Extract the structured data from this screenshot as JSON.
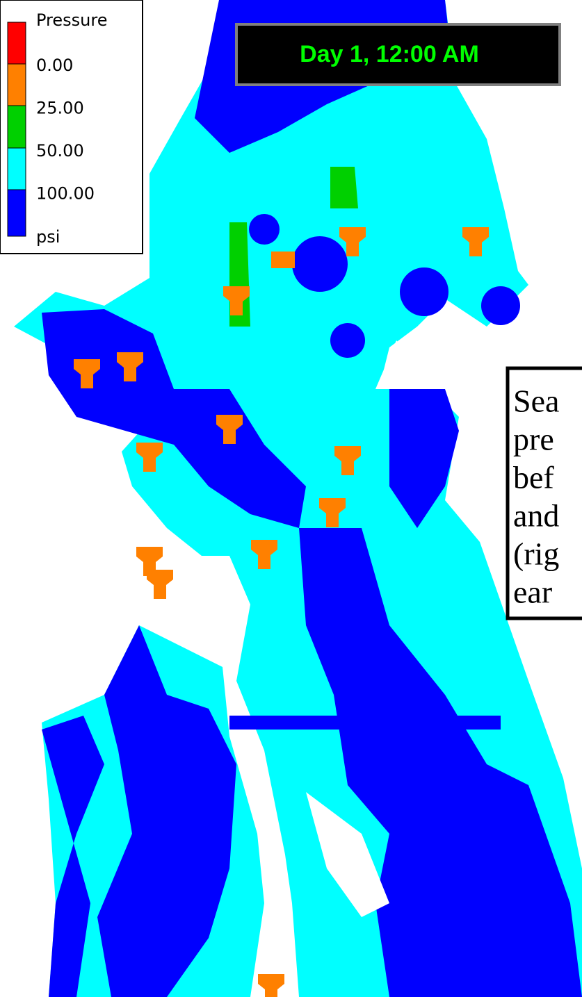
{
  "legend": {
    "title": "Pressure",
    "swatch_colors": [
      "#ff0000",
      "#ff8000",
      "#00d000",
      "#00ffff",
      "#0000ff"
    ],
    "labels": [
      "0.00",
      "25.00",
      "50.00",
      "100.00"
    ],
    "unit": "psi"
  },
  "banner": {
    "text": "Day 1, 12:00 AM",
    "color": "#00ff00"
  },
  "caption": {
    "lines": [
      "Sea",
      "pre",
      "bef",
      "and",
      "(rig",
      "ear"
    ]
  }
}
